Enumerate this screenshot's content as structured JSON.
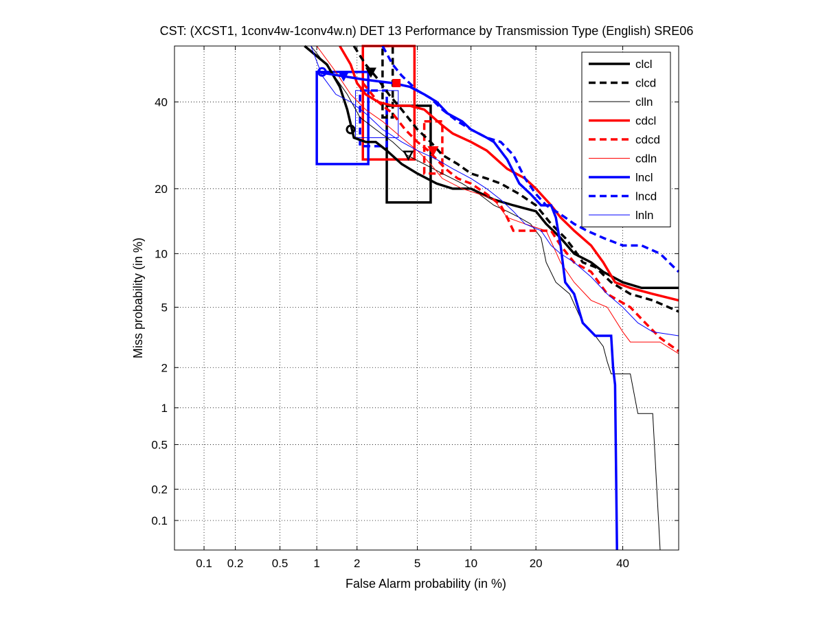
{
  "chart_data": {
    "type": "line",
    "title": "CST: (XCST1, 1conv4w-1conv4w.n) DET 13 Performance by Transmission Type (English) SRE06",
    "xlabel": "False Alarm probability (in %)",
    "ylabel": "Miss probability (in %)",
    "xscale": "normal-deviate (probit)",
    "yscale": "normal-deviate (probit)",
    "xlim": [
      0.05,
      55
    ],
    "ylim": [
      0.05,
      55
    ],
    "xticks": [
      0.1,
      0.2,
      0.5,
      1,
      2,
      5,
      10,
      20,
      40
    ],
    "xtick_labels": [
      "0.1",
      "0.2",
      "0.5",
      "1",
      "2",
      "5",
      "10",
      "20",
      "40"
    ],
    "yticks": [
      0.1,
      0.2,
      0.5,
      1,
      2,
      5,
      10,
      20,
      40
    ],
    "ytick_labels": [
      "0.1",
      "0.2",
      "0.5",
      "1",
      "2",
      "5",
      "10",
      "20",
      "40"
    ],
    "grid": true,
    "legend_position": "top-right",
    "series": [
      {
        "name": "clcl",
        "color": "#000000",
        "dash": "solid",
        "width": 3.5,
        "points": [
          [
            0.8,
            55
          ],
          [
            1.2,
            50
          ],
          [
            1.5,
            44
          ],
          [
            1.7,
            38
          ],
          [
            1.9,
            31
          ],
          [
            2.3,
            30
          ],
          [
            2.7,
            30
          ],
          [
            3.2,
            28
          ],
          [
            4.0,
            25
          ],
          [
            5.0,
            23
          ],
          [
            6.5,
            21
          ],
          [
            8.0,
            20
          ],
          [
            10,
            20
          ],
          [
            13,
            18
          ],
          [
            16,
            17
          ],
          [
            20,
            16
          ],
          [
            22,
            14
          ],
          [
            25,
            12
          ],
          [
            28,
            10
          ],
          [
            32,
            9
          ],
          [
            35,
            8
          ],
          [
            40,
            7
          ],
          [
            45,
            6.5
          ],
          [
            55,
            6.5
          ]
        ],
        "det_point": [
          1.8,
          33
        ],
        "det_marker": "circle",
        "conf_box": {
          "x": [
            3.2,
            6.0
          ],
          "y": [
            17.5,
            39
          ]
        }
      },
      {
        "name": "clcd",
        "color": "#000000",
        "dash": "dashed",
        "width": 3.5,
        "points": [
          [
            1.9,
            55
          ],
          [
            2.3,
            50
          ],
          [
            2.8,
            46
          ],
          [
            3.3,
            42
          ],
          [
            4.0,
            38
          ],
          [
            5.0,
            33
          ],
          [
            6.0,
            30
          ],
          [
            7.0,
            27
          ],
          [
            8.5,
            25
          ],
          [
            10,
            23
          ],
          [
            12,
            22
          ],
          [
            14,
            21
          ],
          [
            17,
            19
          ],
          [
            20,
            17
          ],
          [
            23,
            14
          ],
          [
            26,
            12
          ],
          [
            28,
            10.5
          ],
          [
            30,
            9
          ],
          [
            33,
            8.5
          ],
          [
            37,
            7
          ],
          [
            42,
            6
          ],
          [
            48,
            5.5
          ],
          [
            55,
            4.7
          ]
        ],
        "det_point": [
          2.5,
          48
        ],
        "det_marker": "down-triangle",
        "conf_box": {
          "x": [
            3.0,
            3.5
          ],
          "y": [
            36,
            55
          ]
        }
      },
      {
        "name": "clln",
        "color": "#000000",
        "dash": "solid",
        "width": 1,
        "points": [
          [
            0.9,
            55
          ],
          [
            1.3,
            48
          ],
          [
            1.7,
            42
          ],
          [
            2.1,
            36
          ],
          [
            2.7,
            33
          ],
          [
            3.5,
            30
          ],
          [
            4.3,
            27
          ],
          [
            5.5,
            25
          ],
          [
            7,
            23
          ],
          [
            9,
            21
          ],
          [
            11,
            19
          ],
          [
            13,
            17
          ],
          [
            15,
            16
          ],
          [
            17,
            15
          ],
          [
            19,
            14
          ],
          [
            21,
            12
          ],
          [
            22,
            9
          ],
          [
            24,
            7
          ],
          [
            27,
            6
          ],
          [
            30,
            4
          ],
          [
            33,
            3.3
          ],
          [
            35,
            2.8
          ],
          [
            36,
            2.2
          ],
          [
            37,
            1.8
          ],
          [
            42,
            1.8
          ],
          [
            44,
            0.9
          ],
          [
            48,
            0.9
          ],
          [
            50,
            0.05
          ]
        ],
        "det_point": [
          4.4,
          27
        ],
        "det_marker": "down-triangle"
      },
      {
        "name": "cdcl",
        "color": "#ff0000",
        "dash": "solid",
        "width": 3.5,
        "points": [
          [
            1.5,
            55
          ],
          [
            1.8,
            50
          ],
          [
            2.0,
            45
          ],
          [
            2.3,
            42
          ],
          [
            2.8,
            40
          ],
          [
            3.5,
            39
          ],
          [
            4.5,
            39
          ],
          [
            5.5,
            38
          ],
          [
            7.0,
            34
          ],
          [
            8,
            32
          ],
          [
            10,
            30
          ],
          [
            12,
            28
          ],
          [
            15,
            24
          ],
          [
            18,
            22
          ],
          [
            20,
            20
          ],
          [
            23,
            17
          ],
          [
            25,
            15
          ],
          [
            28,
            13
          ],
          [
            32,
            11
          ],
          [
            35,
            9
          ],
          [
            38,
            7
          ],
          [
            42,
            6.5
          ],
          [
            48,
            6
          ],
          [
            55,
            5.5
          ]
        ],
        "det_point": [
          3.7,
          45
        ],
        "det_marker": "square",
        "conf_box": {
          "x": [
            2.2,
            4.8
          ],
          "y": [
            26,
            55
          ]
        }
      },
      {
        "name": "cdcd",
        "color": "#ff0000",
        "dash": "dashed",
        "width": 3.5,
        "points": [
          [
            2.2,
            45
          ],
          [
            2.8,
            40
          ],
          [
            3.5,
            37
          ],
          [
            4.2,
            33
          ],
          [
            5,
            30
          ],
          [
            5.8,
            28
          ],
          [
            6.5,
            26
          ],
          [
            7.3,
            24
          ],
          [
            8.5,
            22
          ],
          [
            10,
            21
          ],
          [
            12,
            19
          ],
          [
            14,
            17
          ],
          [
            15,
            15
          ],
          [
            16,
            13
          ],
          [
            19,
            13
          ],
          [
            23,
            13
          ],
          [
            25,
            11
          ],
          [
            28,
            9
          ],
          [
            32,
            8
          ],
          [
            36,
            6
          ],
          [
            42,
            5
          ],
          [
            46,
            4
          ],
          [
            50,
            3.2
          ],
          [
            55,
            2.6
          ]
        ],
        "det_point": [
          6.2,
          28
        ],
        "det_marker": "down-triangle",
        "conf_box": {
          "x": [
            5.5,
            7.0
          ],
          "y": [
            23,
            35
          ]
        }
      },
      {
        "name": "cdln",
        "color": "#ff0000",
        "dash": "solid",
        "width": 1,
        "points": [
          [
            1.0,
            55
          ],
          [
            1.4,
            48
          ],
          [
            1.8,
            42
          ],
          [
            2.3,
            38
          ],
          [
            3,
            35
          ],
          [
            4,
            31
          ],
          [
            5,
            28
          ],
          [
            6,
            25
          ],
          [
            7,
            22
          ],
          [
            9,
            20
          ],
          [
            11,
            19
          ],
          [
            13,
            18
          ],
          [
            15,
            15
          ],
          [
            18,
            14
          ],
          [
            22,
            13
          ],
          [
            25,
            9
          ],
          [
            28,
            7
          ],
          [
            32,
            5.5
          ],
          [
            36,
            5
          ],
          [
            40,
            3.5
          ],
          [
            42,
            3
          ],
          [
            45,
            3
          ],
          [
            50,
            3
          ],
          [
            55,
            2.5
          ]
        ]
      },
      {
        "name": "lncl",
        "color": "#0000ff",
        "dash": "solid",
        "width": 3.5,
        "points": [
          [
            1.0,
            48
          ],
          [
            2.2,
            46
          ],
          [
            3.5,
            45
          ],
          [
            4.5,
            44
          ],
          [
            5.5,
            42
          ],
          [
            6.5,
            40
          ],
          [
            7.5,
            37
          ],
          [
            9.0,
            35
          ],
          [
            10,
            33
          ],
          [
            12,
            31
          ],
          [
            13,
            30
          ],
          [
            15,
            26
          ],
          [
            17,
            21
          ],
          [
            19,
            19
          ],
          [
            21,
            17
          ],
          [
            23,
            17
          ],
          [
            24,
            15
          ],
          [
            25,
            11
          ],
          [
            26,
            7
          ],
          [
            28,
            6
          ],
          [
            30,
            4
          ],
          [
            33,
            3.3
          ],
          [
            35,
            3.3
          ],
          [
            37,
            3.3
          ],
          [
            37.5,
            2.0
          ],
          [
            38,
            1.5
          ],
          [
            38.5,
            0.05
          ]
        ],
        "det_point": [
          1.1,
          48
        ],
        "det_marker": "circle",
        "conf_box": {
          "x": [
            1.0,
            2.4
          ],
          "y": [
            25,
            48
          ]
        }
      },
      {
        "name": "lncd",
        "color": "#0000ff",
        "dash": "dashed",
        "width": 3.5,
        "points": [
          [
            3.0,
            55
          ],
          [
            3.5,
            50
          ],
          [
            4.0,
            47
          ],
          [
            5.0,
            43
          ],
          [
            6.0,
            41
          ],
          [
            7.0,
            38
          ],
          [
            8.5,
            35
          ],
          [
            10,
            33
          ],
          [
            12,
            31
          ],
          [
            14,
            30
          ],
          [
            16,
            27
          ],
          [
            18,
            22
          ],
          [
            20,
            19
          ],
          [
            22,
            17
          ],
          [
            24,
            16
          ],
          [
            26,
            15
          ],
          [
            28,
            14
          ],
          [
            31,
            13
          ],
          [
            35,
            12
          ],
          [
            40,
            11
          ],
          [
            45,
            11
          ],
          [
            50,
            10
          ],
          [
            55,
            8
          ]
        ],
        "det_point": [
          1.6,
          47
        ],
        "det_marker": "down-triangle",
        "conf_box": {
          "x": [
            2.1,
            3.2
          ],
          "y": [
            29,
            43
          ]
        }
      },
      {
        "name": "lnln",
        "color": "#0000ff",
        "dash": "solid",
        "width": 1,
        "points": [
          [
            0.9,
            55
          ],
          [
            1.1,
            47
          ],
          [
            1.4,
            42
          ],
          [
            1.8,
            40
          ],
          [
            2.3,
            37
          ],
          [
            3,
            33
          ],
          [
            4,
            30
          ],
          [
            5,
            28
          ],
          [
            6.5,
            26
          ],
          [
            8,
            24
          ],
          [
            10,
            22
          ],
          [
            12,
            20
          ],
          [
            14,
            18
          ],
          [
            16,
            16
          ],
          [
            18,
            14
          ],
          [
            21,
            13
          ],
          [
            23,
            11
          ],
          [
            25,
            10
          ],
          [
            28,
            9
          ],
          [
            32,
            7.5
          ],
          [
            36,
            6
          ],
          [
            40,
            5
          ],
          [
            44,
            4
          ],
          [
            48,
            3.5
          ],
          [
            55,
            3.3
          ]
        ],
        "conf_box": {
          "x": [
            1.95,
            3.8
          ],
          "y": [
            31,
            43
          ]
        }
      }
    ]
  }
}
